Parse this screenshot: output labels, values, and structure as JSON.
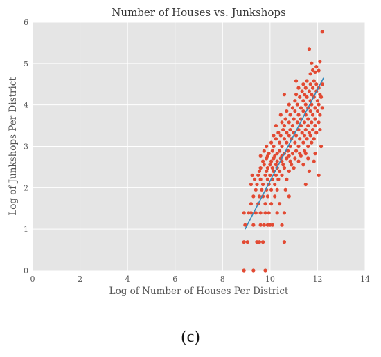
{
  "chart_data": {
    "type": "scatter",
    "title": "Number of Houses vs. Junkshops",
    "xlabel": "Log of Number of Houses Per District",
    "ylabel": "Log of Junkshops Per District",
    "xlim": [
      0,
      14
    ],
    "ylim": [
      0,
      6
    ],
    "xticks": [
      "0",
      "2",
      "4",
      "6",
      "8",
      "10",
      "12",
      "14"
    ],
    "yticks": [
      "0",
      "1",
      "2",
      "3",
      "4",
      "5",
      "6"
    ],
    "grid": true,
    "background": "#e5e5e5",
    "point_color": "#e24a33",
    "line_color": "#348abd",
    "points": [
      [
        8.9,
        0.0
      ],
      [
        9.3,
        0.0
      ],
      [
        9.8,
        0.0
      ],
      [
        8.9,
        0.69
      ],
      [
        9.05,
        0.69
      ],
      [
        9.45,
        0.69
      ],
      [
        9.55,
        0.69
      ],
      [
        9.7,
        0.69
      ],
      [
        10.6,
        0.69
      ],
      [
        8.95,
        1.1
      ],
      [
        9.3,
        1.1
      ],
      [
        9.6,
        1.1
      ],
      [
        9.75,
        1.1
      ],
      [
        9.9,
        1.1
      ],
      [
        10.0,
        1.1
      ],
      [
        10.1,
        1.1
      ],
      [
        10.5,
        1.1
      ],
      [
        8.9,
        1.39
      ],
      [
        9.1,
        1.39
      ],
      [
        9.2,
        1.39
      ],
      [
        9.4,
        1.39
      ],
      [
        9.6,
        1.39
      ],
      [
        9.8,
        1.39
      ],
      [
        9.95,
        1.39
      ],
      [
        10.3,
        1.39
      ],
      [
        10.6,
        1.39
      ],
      [
        9.2,
        1.61
      ],
      [
        9.5,
        1.61
      ],
      [
        9.8,
        1.61
      ],
      [
        10.05,
        1.61
      ],
      [
        10.4,
        1.61
      ],
      [
        9.3,
        1.79
      ],
      [
        9.55,
        1.79
      ],
      [
        9.7,
        1.79
      ],
      [
        9.9,
        1.79
      ],
      [
        10.2,
        1.79
      ],
      [
        10.8,
        1.79
      ],
      [
        9.4,
        1.95
      ],
      [
        9.65,
        1.95
      ],
      [
        9.85,
        1.95
      ],
      [
        10.05,
        1.95
      ],
      [
        10.3,
        1.95
      ],
      [
        10.65,
        1.95
      ],
      [
        9.2,
        2.08
      ],
      [
        9.45,
        2.08
      ],
      [
        9.7,
        2.08
      ],
      [
        9.95,
        2.08
      ],
      [
        10.2,
        2.08
      ],
      [
        11.5,
        2.08
      ],
      [
        9.35,
        2.2
      ],
      [
        9.6,
        2.2
      ],
      [
        9.9,
        2.2
      ],
      [
        10.1,
        2.2
      ],
      [
        10.35,
        2.2
      ],
      [
        10.7,
        2.2
      ],
      [
        9.25,
        2.3
      ],
      [
        9.5,
        2.3
      ],
      [
        9.8,
        2.3
      ],
      [
        10.0,
        2.3
      ],
      [
        10.25,
        2.3
      ],
      [
        10.5,
        2.3
      ],
      [
        12.05,
        2.3
      ],
      [
        9.55,
        2.4
      ],
      [
        9.85,
        2.4
      ],
      [
        10.15,
        2.4
      ],
      [
        10.4,
        2.4
      ],
      [
        10.8,
        2.4
      ],
      [
        11.65,
        2.4
      ],
      [
        9.6,
        2.48
      ],
      [
        9.9,
        2.48
      ],
      [
        10.1,
        2.48
      ],
      [
        10.3,
        2.48
      ],
      [
        10.6,
        2.48
      ],
      [
        11.0,
        2.48
      ],
      [
        9.75,
        2.56
      ],
      [
        10.0,
        2.56
      ],
      [
        10.25,
        2.56
      ],
      [
        10.55,
        2.56
      ],
      [
        10.9,
        2.56
      ],
      [
        11.4,
        2.56
      ],
      [
        9.7,
        2.64
      ],
      [
        10.05,
        2.64
      ],
      [
        10.3,
        2.64
      ],
      [
        10.5,
        2.64
      ],
      [
        10.85,
        2.64
      ],
      [
        11.2,
        2.64
      ],
      [
        11.85,
        2.64
      ],
      [
        9.85,
        2.71
      ],
      [
        10.15,
        2.71
      ],
      [
        10.45,
        2.71
      ],
      [
        10.7,
        2.71
      ],
      [
        11.05,
        2.71
      ],
      [
        11.6,
        2.71
      ],
      [
        9.6,
        2.77
      ],
      [
        9.9,
        2.77
      ],
      [
        10.2,
        2.77
      ],
      [
        10.5,
        2.77
      ],
      [
        10.8,
        2.77
      ],
      [
        11.3,
        2.77
      ],
      [
        9.95,
        2.83
      ],
      [
        10.3,
        2.83
      ],
      [
        10.6,
        2.83
      ],
      [
        10.95,
        2.83
      ],
      [
        11.25,
        2.83
      ],
      [
        11.5,
        2.83
      ],
      [
        11.9,
        2.83
      ],
      [
        9.75,
        2.89
      ],
      [
        10.1,
        2.89
      ],
      [
        10.4,
        2.89
      ],
      [
        10.75,
        2.89
      ],
      [
        11.1,
        2.89
      ],
      [
        11.45,
        2.89
      ],
      [
        9.85,
        3.0
      ],
      [
        10.15,
        3.0
      ],
      [
        10.5,
        3.0
      ],
      [
        10.85,
        3.0
      ],
      [
        11.2,
        3.0
      ],
      [
        11.6,
        3.0
      ],
      [
        12.15,
        3.0
      ],
      [
        10.05,
        3.09
      ],
      [
        10.4,
        3.09
      ],
      [
        10.7,
        3.09
      ],
      [
        11.05,
        3.09
      ],
      [
        11.4,
        3.09
      ],
      [
        11.75,
        3.09
      ],
      [
        10.25,
        3.18
      ],
      [
        10.6,
        3.18
      ],
      [
        10.9,
        3.18
      ],
      [
        11.25,
        3.18
      ],
      [
        11.55,
        3.18
      ],
      [
        11.85,
        3.18
      ],
      [
        10.15,
        3.26
      ],
      [
        10.45,
        3.26
      ],
      [
        10.8,
        3.26
      ],
      [
        11.1,
        3.26
      ],
      [
        11.45,
        3.26
      ],
      [
        11.7,
        3.26
      ],
      [
        10.35,
        3.33
      ],
      [
        10.7,
        3.33
      ],
      [
        11.0,
        3.33
      ],
      [
        11.35,
        3.33
      ],
      [
        11.65,
        3.33
      ],
      [
        11.95,
        3.33
      ],
      [
        10.55,
        3.4
      ],
      [
        10.85,
        3.4
      ],
      [
        11.2,
        3.4
      ],
      [
        11.5,
        3.4
      ],
      [
        11.8,
        3.4
      ],
      [
        12.1,
        3.4
      ],
      [
        10.25,
        3.5
      ],
      [
        10.6,
        3.5
      ],
      [
        10.95,
        3.5
      ],
      [
        11.3,
        3.5
      ],
      [
        11.6,
        3.5
      ],
      [
        11.9,
        3.5
      ],
      [
        10.5,
        3.58
      ],
      [
        10.8,
        3.58
      ],
      [
        11.15,
        3.58
      ],
      [
        11.45,
        3.58
      ],
      [
        11.75,
        3.58
      ],
      [
        12.05,
        3.58
      ],
      [
        10.65,
        3.66
      ],
      [
        11.0,
        3.66
      ],
      [
        11.3,
        3.66
      ],
      [
        11.6,
        3.66
      ],
      [
        11.9,
        3.66
      ],
      [
        10.45,
        3.76
      ],
      [
        10.85,
        3.76
      ],
      [
        11.2,
        3.76
      ],
      [
        11.5,
        3.76
      ],
      [
        11.8,
        3.76
      ],
      [
        12.1,
        3.76
      ],
      [
        10.7,
        3.85
      ],
      [
        11.05,
        3.85
      ],
      [
        11.4,
        3.85
      ],
      [
        11.7,
        3.85
      ],
      [
        12.0,
        3.85
      ],
      [
        10.95,
        3.93
      ],
      [
        11.3,
        3.93
      ],
      [
        11.6,
        3.93
      ],
      [
        11.9,
        3.93
      ],
      [
        12.2,
        3.93
      ],
      [
        10.8,
        4.01
      ],
      [
        11.15,
        4.01
      ],
      [
        11.5,
        4.01
      ],
      [
        11.75,
        4.01
      ],
      [
        12.05,
        4.01
      ],
      [
        11.05,
        4.1
      ],
      [
        11.4,
        4.1
      ],
      [
        11.7,
        4.1
      ],
      [
        12.0,
        4.1
      ],
      [
        11.25,
        4.19
      ],
      [
        11.55,
        4.19
      ],
      [
        11.85,
        4.19
      ],
      [
        12.15,
        4.19
      ],
      [
        10.6,
        4.25
      ],
      [
        11.1,
        4.25
      ],
      [
        11.45,
        4.25
      ],
      [
        11.75,
        4.25
      ],
      [
        12.1,
        4.25
      ],
      [
        11.35,
        4.33
      ],
      [
        11.65,
        4.33
      ],
      [
        11.95,
        4.33
      ],
      [
        11.2,
        4.41
      ],
      [
        11.5,
        4.41
      ],
      [
        11.8,
        4.41
      ],
      [
        12.05,
        4.41
      ],
      [
        11.4,
        4.5
      ],
      [
        11.7,
        4.5
      ],
      [
        11.95,
        4.5
      ],
      [
        12.2,
        4.5
      ],
      [
        11.1,
        4.58
      ],
      [
        11.55,
        4.58
      ],
      [
        11.85,
        4.58
      ],
      [
        11.7,
        4.75
      ],
      [
        11.9,
        4.79
      ],
      [
        12.05,
        4.83
      ],
      [
        11.8,
        4.84
      ],
      [
        11.95,
        4.92
      ],
      [
        11.75,
        5.01
      ],
      [
        12.1,
        5.05
      ],
      [
        11.65,
        5.35
      ],
      [
        12.2,
        5.77
      ]
    ],
    "fit_line": {
      "x": [
        8.95,
        12.25
      ],
      "y": [
        1.0,
        4.65
      ]
    }
  },
  "caption": "(c)"
}
